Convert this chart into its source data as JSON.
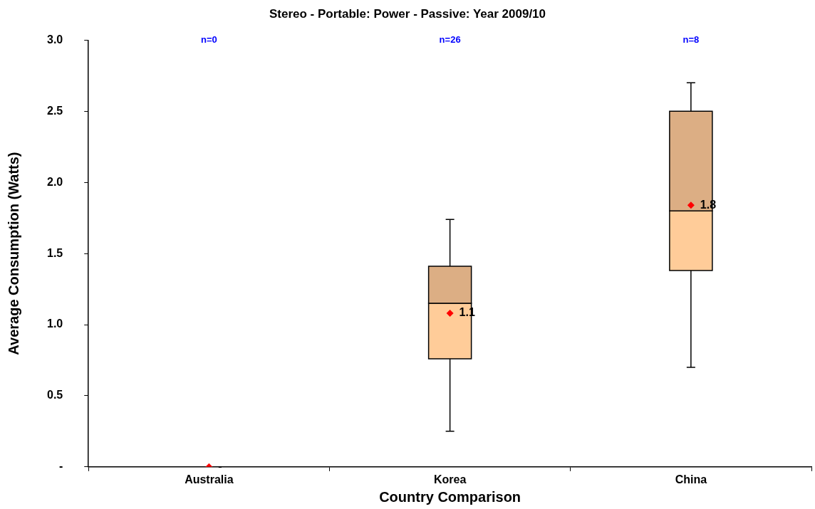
{
  "chart_data": {
    "type": "box",
    "title": "Stereo - Portable: Power - Passive: Year 2009/10",
    "xlabel": "Country Comparison",
    "ylabel": "Average Consumption (Watts)",
    "categories": [
      "Australia",
      "Korea",
      "China"
    ],
    "boxes": [
      null,
      {
        "low": 0.25,
        "q1": 0.76,
        "median": 1.15,
        "q3": 1.41,
        "high": 1.74
      },
      {
        "low": 0.7,
        "q1": 1.38,
        "median": 1.8,
        "q3": 2.5,
        "high": 2.7
      }
    ],
    "series": [
      {
        "type": "scatter",
        "x": [
          "Australia",
          "Korea",
          "China"
        ],
        "values": [
          0,
          1.08,
          1.84
        ],
        "value_labels": [
          "-",
          "1.1",
          "1.8"
        ],
        "color": "#ff0000",
        "marker": "diamond"
      }
    ],
    "ylim": [
      0,
      3
    ],
    "yticks": [
      {
        "value": 0,
        "label": "-"
      },
      {
        "value": 0.5,
        "label": "0.5"
      },
      {
        "value": 1,
        "label": "1.0"
      },
      {
        "value": 1.5,
        "label": "1.5"
      },
      {
        "value": 2,
        "label": "2.0"
      },
      {
        "value": 2.5,
        "label": "2.5"
      },
      {
        "value": 3,
        "label": "3.0"
      }
    ],
    "annotations": [
      "n=0",
      "n=26",
      "n=8"
    ],
    "grid": false,
    "legend": false
  }
}
